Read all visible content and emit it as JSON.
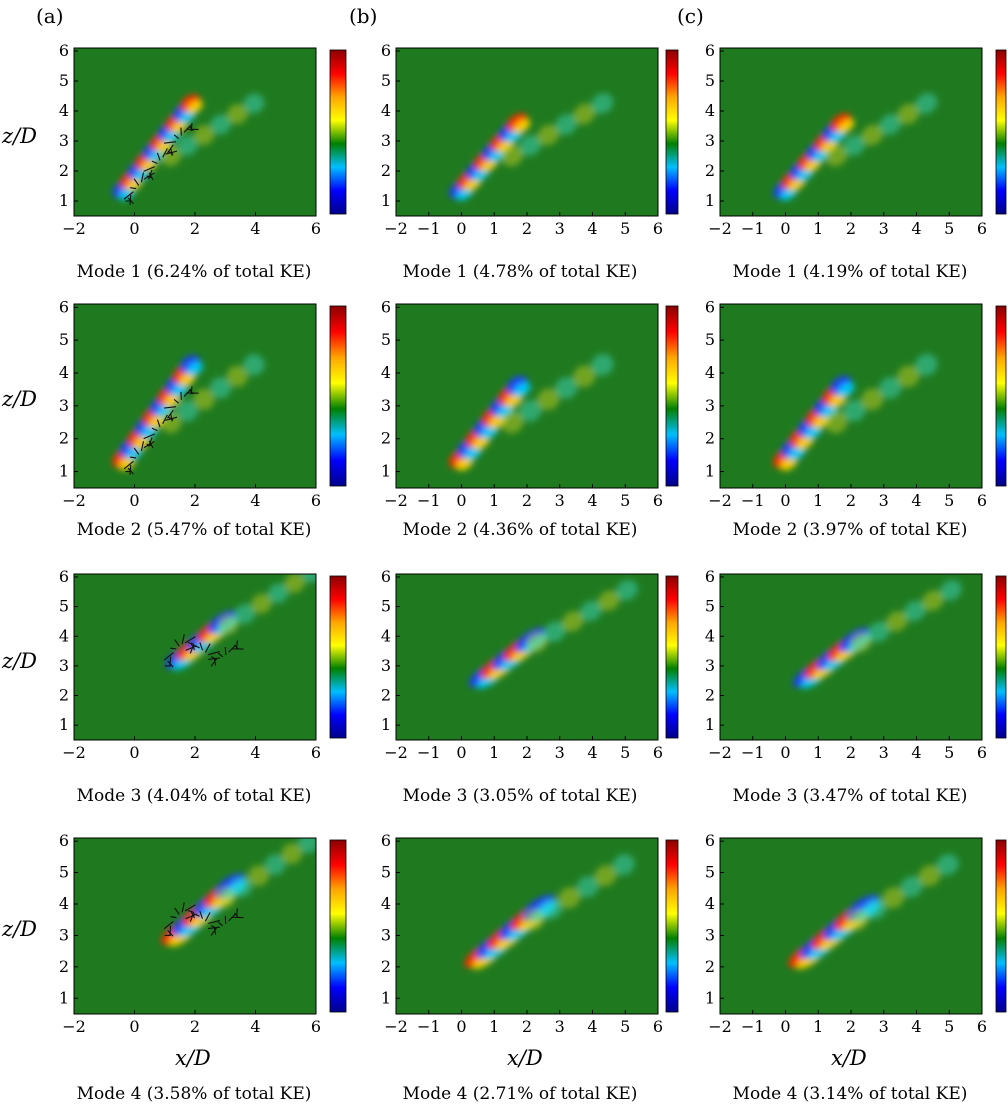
{
  "columns": [
    {
      "label": "(a)",
      "xticks": [
        -2,
        0,
        2,
        4,
        6
      ],
      "xlim": [
        -2,
        6
      ],
      "ylim": [
        0.5,
        6.1
      ],
      "yticks": [
        1,
        2,
        3,
        4,
        5,
        6
      ],
      "quivers": true,
      "panels": [
        {
          "caption": "Mode 1 (6.24% of total KE)",
          "mode": 1
        },
        {
          "caption": "Mode 2 (5.47% of total KE)",
          "mode": 2
        },
        {
          "caption": "Mode 3 (4.04% of total KE)",
          "mode": 3
        },
        {
          "caption": "Mode 4 (3.58% of total KE)",
          "mode": 4
        }
      ]
    },
    {
      "label": "(b)",
      "xticks": [
        -2,
        -1,
        0,
        1,
        2,
        3,
        4,
        5,
        6
      ],
      "xlim": [
        -2,
        6
      ],
      "ylim": [
        0.5,
        6.1
      ],
      "yticks": [
        1,
        2,
        3,
        4,
        5,
        6
      ],
      "quivers": false,
      "panels": [
        {
          "caption": "Mode 1 (4.78% of total KE)",
          "mode": 1
        },
        {
          "caption": "Mode 2 (4.36% of total KE)",
          "mode": 2
        },
        {
          "caption": "Mode 3 (3.05% of total KE)",
          "mode": 3
        },
        {
          "caption": "Mode 4 (2.71% of total KE)",
          "mode": 4
        }
      ]
    },
    {
      "label": "(c)",
      "xticks": [
        -2,
        -1,
        0,
        1,
        2,
        3,
        4,
        5,
        6
      ],
      "xlim": [
        -2,
        6
      ],
      "ylim": [
        0.5,
        6.1
      ],
      "yticks": [
        1,
        2,
        3,
        4,
        5,
        6
      ],
      "quivers": false,
      "panels": [
        {
          "caption": "Mode 1 (4.19% of total KE)",
          "mode": 1
        },
        {
          "caption": "Mode 2 (3.97% of total KE)",
          "mode": 2
        },
        {
          "caption": "Mode 3 (3.47% of total KE)",
          "mode": 3
        },
        {
          "caption": "Mode 4 (3.14% of total KE)",
          "mode": 4
        }
      ]
    }
  ],
  "ylabel": "z/D",
  "xlabel": "x/D",
  "colormap": [
    "#00008b",
    "#0000ff",
    "#00bfff",
    "#008000",
    "#ffff00",
    "#ffa500",
    "#ff0000",
    "#8b0000"
  ],
  "background_color": "#1f7a1f",
  "chart_data": {
    "type": "heatmap",
    "title": "",
    "xlabel": "x/D",
    "ylabel": "z/D",
    "xlim": [
      -2,
      6
    ],
    "ylim": [
      0.5,
      6.1
    ],
    "panels": [
      {
        "column": "(a)",
        "caption": "Mode 1 (6.24% of total KE)",
        "ke_percent": 6.24
      },
      {
        "column": "(a)",
        "caption": "Mode 2 (5.47% of total KE)",
        "ke_percent": 5.47
      },
      {
        "column": "(a)",
        "caption": "Mode 3 (4.04% of total KE)",
        "ke_percent": 4.04
      },
      {
        "column": "(a)",
        "caption": "Mode 4 (3.58% of total KE)",
        "ke_percent": 3.58
      },
      {
        "column": "(b)",
        "caption": "Mode 1 (4.78% of total KE)",
        "ke_percent": 4.78
      },
      {
        "column": "(b)",
        "caption": "Mode 2 (4.36% of total KE)",
        "ke_percent": 4.36
      },
      {
        "column": "(b)",
        "caption": "Mode 3 (3.05% of total KE)",
        "ke_percent": 3.05
      },
      {
        "column": "(b)",
        "caption": "Mode 4 (2.71% of total KE)",
        "ke_percent": 2.71
      },
      {
        "column": "(c)",
        "caption": "Mode 1 (4.19% of total KE)",
        "ke_percent": 4.19
      },
      {
        "column": "(c)",
        "caption": "Mode 2 (3.97% of total KE)",
        "ke_percent": 3.97
      },
      {
        "column": "(c)",
        "caption": "Mode 3 (3.47% of total KE)",
        "ke_percent": 3.47
      },
      {
        "column": "(c)",
        "caption": "Mode 4 (3.14% of total KE)",
        "ke_percent": 3.14
      }
    ]
  }
}
